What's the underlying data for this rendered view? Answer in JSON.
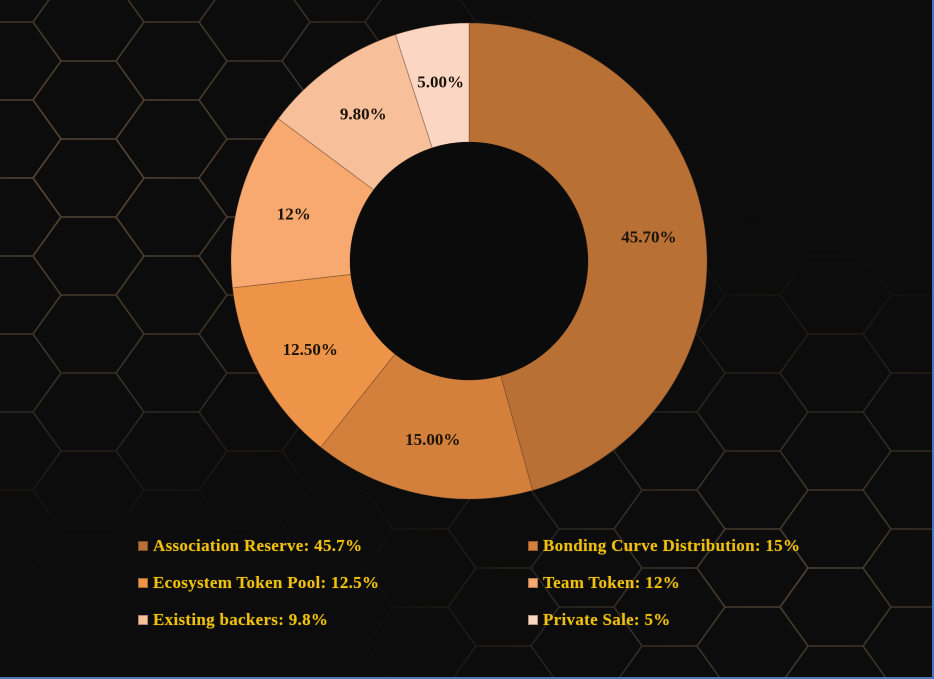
{
  "chart_data": {
    "type": "pie",
    "variant": "donut",
    "title": "",
    "categories": [
      "Association Reserve",
      "Bonding Curve Distribution",
      "Ecosystem Token Pool",
      "Team Token",
      "Existing backers",
      "Private Sale"
    ],
    "values": [
      45.7,
      15,
      12.5,
      12,
      9.8,
      5
    ],
    "data_labels": [
      "45.70%",
      "15.00%",
      "12.50%",
      "12%",
      "9.80%",
      "5.00%"
    ],
    "colors": [
      "#b87035",
      "#d4803d",
      "#ed9448",
      "#f7a970",
      "#f8bf9b",
      "#fad6c3"
    ],
    "legend_position": "bottom",
    "legend_columns": 2,
    "start_angle_deg": 0,
    "direction": "clockwise"
  },
  "legend": {
    "items": [
      {
        "label": "Association Reserve: 45.7%",
        "color": "#b87035"
      },
      {
        "label": "Bonding Curve Distribution: 15%",
        "color": "#d4803d"
      },
      {
        "label": "Ecosystem Token Pool: 12.5%",
        "color": "#ed9448"
      },
      {
        "label": "Team Token: 12%",
        "color": "#f7a970"
      },
      {
        "label": "Existing backers: 9.8%",
        "color": "#f8bf9b"
      },
      {
        "label": "Private Sale: 5%",
        "color": "#fad6c3"
      }
    ]
  },
  "theme": {
    "background": "#0c0c0c",
    "hex_line": "#5a4a38",
    "legend_text": "#f0c010",
    "border": "#4a78b8"
  }
}
